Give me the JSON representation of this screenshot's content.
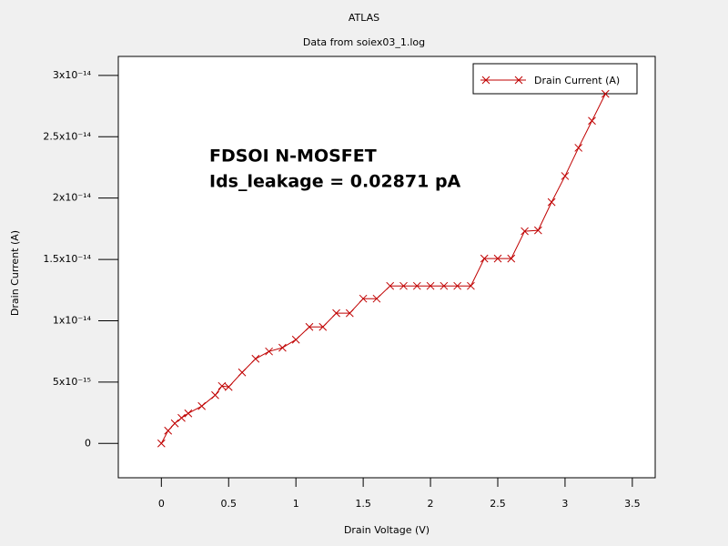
{
  "chart_data": {
    "type": "line",
    "title": "ATLAS",
    "subtitle": "Data from soiex03_1.log",
    "x_label": "Drain Voltage (V)",
    "y_label": "Drain Current (A)",
    "annotations": [
      "FDSOI N-MOSFET",
      "Ids_leakage = 0.02871 pA"
    ],
    "x": [
      0,
      0.05,
      0.1,
      0.15,
      0.2,
      0.3,
      0.4,
      0.45,
      0.5,
      0.6,
      0.7,
      0.8,
      0.9,
      1.0,
      1.1,
      1.2,
      1.3,
      1.4,
      1.5,
      1.6,
      1.7,
      1.8,
      1.9,
      2.0,
      2.1,
      2.2,
      2.3,
      2.4,
      2.5,
      2.6,
      2.7,
      2.8,
      2.9,
      3.0,
      3.1,
      3.2,
      3.3
    ],
    "series": [
      {
        "name": "Drain Current (A)",
        "color": "#c00000",
        "values": [
          0,
          1.04e-15,
          1.63e-15,
          2.08e-15,
          2.45e-15,
          3.04e-15,
          3.93e-15,
          4.68e-15,
          4.6e-15,
          5.79e-15,
          6.9e-15,
          7.5e-15,
          7.8e-15,
          8.46e-15,
          9.5e-15,
          9.5e-15,
          1.062e-14,
          1.062e-14,
          1.18e-14,
          1.18e-14,
          1.284e-14,
          1.284e-14,
          1.284e-14,
          1.284e-14,
          1.284e-14,
          1.284e-14,
          1.284e-14,
          1.507e-14,
          1.507e-14,
          1.507e-14,
          1.73e-14,
          1.737e-14,
          1.967e-14,
          2.18e-14,
          2.41e-14,
          2.63e-14,
          2.85e-14
        ]
      }
    ],
    "xlim": [
      -0.32,
      3.67
    ],
    "ylim": [
      -2.8e-15,
      3.155e-14
    ],
    "xticks": [
      0,
      0.5,
      1,
      1.5,
      2,
      2.5,
      3,
      3.5
    ],
    "yticks": [
      0,
      {
        "value": 5e-15,
        "label": "5x10⁻¹⁵"
      },
      {
        "value": 1e-14,
        "label": "1x10⁻¹⁴"
      },
      {
        "value": 1.5e-14,
        "label": "1.5x10⁻¹⁴"
      },
      {
        "value": 2e-14,
        "label": "2x10⁻¹⁴"
      },
      {
        "value": 2.5e-14,
        "label": "2.5x10⁻¹⁴"
      },
      {
        "value": 3e-14,
        "label": "3x10⁻¹⁴"
      }
    ],
    "grid": false,
    "legend": "top-right",
    "marker": "x"
  }
}
